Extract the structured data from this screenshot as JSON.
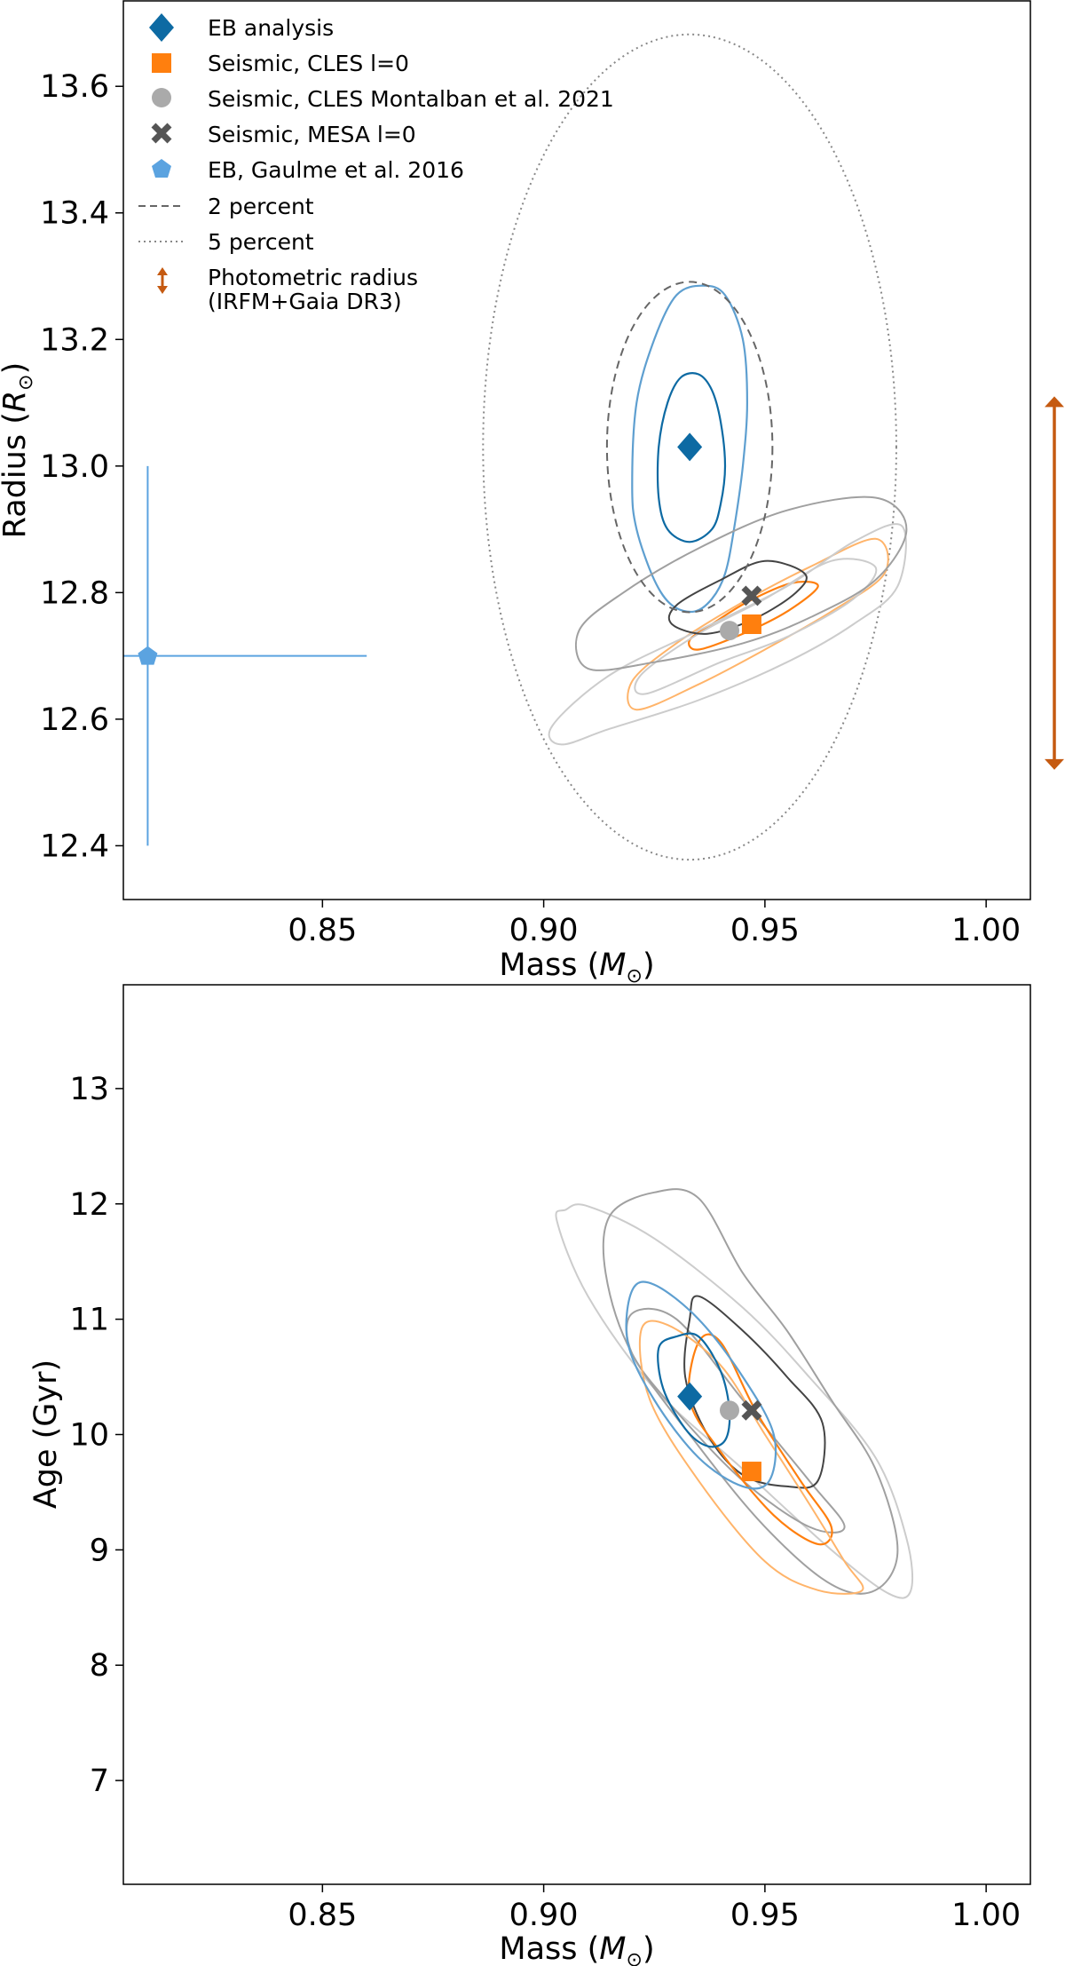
{
  "colors": {
    "eb": "#0d6aa3",
    "eb_outer": "#5e9fd0",
    "cles": "#ff7f0e",
    "cles_outer": "#ffb46a",
    "montalban": "#aaaaaa",
    "mesa": "#555555",
    "gaulme": "#5ba3e0",
    "photometric": "#c55a11",
    "ellipse": "#666666",
    "ellipse_dotted": "#888888",
    "gray_light": "#cccccc",
    "gray_mid": "#a0a0a0",
    "gray_dark": "#444444"
  },
  "legend": {
    "eb_analysis": "EB analysis",
    "seismic_cles": "Seismic, CLES l=0",
    "seismic_montalban": "Seismic, CLES Montalban et al. 2021",
    "seismic_mesa": "Seismic, MESA l=0",
    "eb_gaulme": "EB, Gaulme et al. 2016",
    "two_percent": "2 percent",
    "five_percent": "5 percent",
    "photometric_line1": "Photometric radius",
    "photometric_line2": "(IRFM+Gaia DR3)"
  },
  "chart_data": [
    {
      "type": "scatter",
      "xlabel_text": "Mass (",
      "xlabel_sym": "M",
      "xlabel_sub": "⊙",
      "xlabel_end": ")",
      "ylabel_text": "Radius (",
      "ylabel_sym": "R",
      "ylabel_sub": "⊙",
      "ylabel_end": ")",
      "xlim": [
        0.805,
        1.01
      ],
      "ylim": [
        12.315,
        13.735
      ],
      "xticks": [
        0.85,
        0.9,
        0.95,
        1.0
      ],
      "xtick_labels": [
        "0.85",
        "0.90",
        "0.95",
        "1.00"
      ],
      "yticks": [
        12.4,
        12.6,
        12.8,
        13.0,
        13.2,
        13.4,
        13.6
      ],
      "ytick_labels": [
        "12.4",
        "12.6",
        "12.8",
        "13.0",
        "13.2",
        "13.4",
        "13.6"
      ],
      "grid": false,
      "legend_position": "upper-left",
      "points": {
        "eb_analysis": [
          0.933,
          13.03
        ],
        "seismic_cles": [
          0.947,
          12.75
        ],
        "seismic_montalban": [
          0.942,
          12.74
        ],
        "seismic_mesa": [
          0.947,
          12.795
        ],
        "eb_gaulme": [
          0.8105,
          12.7
        ]
      },
      "gaulme_errorbar": {
        "x_range": [
          0.805,
          0.86
        ],
        "y_range": [
          12.4,
          13.0
        ]
      },
      "ellipse_2_percent": {
        "center": [
          0.933,
          13.03
        ],
        "rx": 0.0187,
        "ry": 0.261
      },
      "ellipse_5_percent": {
        "center": [
          0.933,
          13.03
        ],
        "rx": 0.0467,
        "ry": 0.652
      },
      "photometric_radius_range": [
        12.52,
        13.11
      ],
      "contours": [
        {
          "series": "eb_inner",
          "color": "eb",
          "width": 2.2,
          "points": [
            [
              0.926,
              12.95
            ],
            [
              0.928,
              12.9
            ],
            [
              0.933,
              12.88
            ],
            [
              0.938,
              12.9
            ],
            [
              0.94,
              12.94
            ],
            [
              0.941,
              13.0
            ],
            [
              0.94,
              13.07
            ],
            [
              0.938,
              13.12
            ],
            [
              0.935,
              13.145
            ],
            [
              0.931,
              13.14
            ],
            [
              0.928,
              13.1
            ],
            [
              0.926,
              13.03
            ]
          ]
        },
        {
          "series": "eb_outer",
          "color": "eb_outer",
          "width": 2.2,
          "points": [
            [
              0.92,
              12.97
            ],
            [
              0.921,
              12.9
            ],
            [
              0.925,
              12.82
            ],
            [
              0.929,
              12.78
            ],
            [
              0.934,
              12.77
            ],
            [
              0.938,
              12.79
            ],
            [
              0.941,
              12.83
            ],
            [
              0.943,
              12.9
            ],
            [
              0.945,
              13.0
            ],
            [
              0.946,
              13.1
            ],
            [
              0.945,
              13.2
            ],
            [
              0.941,
              13.27
            ],
            [
              0.936,
              13.285
            ],
            [
              0.93,
              13.27
            ],
            [
              0.925,
              13.2
            ],
            [
              0.921,
              13.1
            ]
          ]
        },
        {
          "series": "cles_inner",
          "color": "cles",
          "width": 2.2,
          "points": [
            [
              0.935,
              12.71
            ],
            [
              0.945,
              12.735
            ],
            [
              0.955,
              12.77
            ],
            [
              0.962,
              12.81
            ],
            [
              0.956,
              12.815
            ],
            [
              0.946,
              12.785
            ],
            [
              0.938,
              12.75
            ],
            [
              0.933,
              12.725
            ]
          ]
        },
        {
          "series": "cles_outer",
          "color": "cles_outer",
          "width": 2,
          "points": [
            [
              0.921,
              12.615
            ],
            [
              0.935,
              12.655
            ],
            [
              0.95,
              12.71
            ],
            [
              0.965,
              12.77
            ],
            [
              0.977,
              12.83
            ],
            [
              0.975,
              12.885
            ],
            [
              0.96,
              12.84
            ],
            [
              0.945,
              12.785
            ],
            [
              0.93,
              12.72
            ],
            [
              0.92,
              12.66
            ]
          ]
        },
        {
          "series": "gray_light_1",
          "color": "gray_light",
          "width": 2,
          "points": [
            [
              0.904,
              12.56
            ],
            [
              0.915,
              12.585
            ],
            [
              0.935,
              12.63
            ],
            [
              0.955,
              12.69
            ],
            [
              0.97,
              12.75
            ],
            [
              0.98,
              12.81
            ],
            [
              0.981,
              12.905
            ],
            [
              0.97,
              12.88
            ],
            [
              0.955,
              12.81
            ],
            [
              0.935,
              12.74
            ],
            [
              0.915,
              12.67
            ],
            [
              0.902,
              12.59
            ]
          ]
        },
        {
          "series": "gray_light_2",
          "color": "gray_light",
          "width": 2,
          "points": [
            [
              0.923,
              12.64
            ],
            [
              0.94,
              12.69
            ],
            [
              0.955,
              12.73
            ],
            [
              0.97,
              12.79
            ],
            [
              0.975,
              12.84
            ],
            [
              0.965,
              12.85
            ],
            [
              0.95,
              12.79
            ],
            [
              0.935,
              12.735
            ],
            [
              0.922,
              12.67
            ]
          ]
        },
        {
          "series": "gray_mid",
          "color": "gray_mid",
          "width": 2,
          "points": [
            [
              0.91,
              12.68
            ],
            [
              0.925,
              12.69
            ],
            [
              0.945,
              12.72
            ],
            [
              0.96,
              12.76
            ],
            [
              0.975,
              12.82
            ],
            [
              0.982,
              12.9
            ],
            [
              0.975,
              12.95
            ],
            [
              0.955,
              12.93
            ],
            [
              0.935,
              12.87
            ],
            [
              0.918,
              12.8
            ],
            [
              0.908,
              12.74
            ]
          ]
        },
        {
          "series": "gray_dark",
          "color": "gray_dark",
          "width": 2,
          "points": [
            [
              0.929,
              12.75
            ],
            [
              0.937,
              12.735
            ],
            [
              0.948,
              12.76
            ],
            [
              0.957,
              12.8
            ],
            [
              0.959,
              12.83
            ],
            [
              0.95,
              12.85
            ],
            [
              0.94,
              12.82
            ],
            [
              0.93,
              12.78
            ]
          ]
        }
      ]
    },
    {
      "type": "scatter",
      "xlabel_text": "Mass (",
      "xlabel_sym": "M",
      "xlabel_sub": "⊙",
      "xlabel_end": ")",
      "ylabel_text": "Age (Gyr)",
      "xlim": [
        0.805,
        1.01
      ],
      "ylim": [
        6.1,
        13.9
      ],
      "xticks": [
        0.85,
        0.9,
        0.95,
        1.0
      ],
      "xtick_labels": [
        "0.85",
        "0.90",
        "0.95",
        "1.00"
      ],
      "yticks": [
        7,
        8,
        9,
        10,
        11,
        12,
        13
      ],
      "ytick_labels": [
        "7",
        "8",
        "9",
        "10",
        "11",
        "12",
        "13"
      ],
      "grid": false,
      "points": {
        "eb_analysis": [
          0.933,
          10.33
        ],
        "seismic_cles": [
          0.947,
          9.68
        ],
        "seismic_montalban": [
          0.942,
          10.21
        ],
        "seismic_mesa": [
          0.947,
          10.21
        ]
      },
      "contours": [
        {
          "series": "gray_light",
          "color": "gray_light",
          "width": 2,
          "points": [
            [
              0.903,
              11.85
            ],
            [
              0.905,
              11.95
            ],
            [
              0.91,
              11.98
            ],
            [
              0.925,
              11.7
            ],
            [
              0.945,
              11.1
            ],
            [
              0.96,
              10.5
            ],
            [
              0.975,
              9.8
            ],
            [
              0.982,
              9.1
            ],
            [
              0.983,
              8.65
            ],
            [
              0.978,
              8.62
            ],
            [
              0.965,
              9.0
            ],
            [
              0.945,
              9.7
            ],
            [
              0.925,
              10.4
            ],
            [
              0.91,
              11.2
            ]
          ]
        },
        {
          "series": "gray_mid_1",
          "color": "gray_mid",
          "width": 2,
          "points": [
            [
              0.915,
              11.9
            ],
            [
              0.925,
              12.1
            ],
            [
              0.935,
              12.05
            ],
            [
              0.945,
              11.4
            ],
            [
              0.955,
              10.9
            ],
            [
              0.965,
              10.3
            ],
            [
              0.975,
              9.7
            ],
            [
              0.98,
              9.0
            ],
            [
              0.975,
              8.65
            ],
            [
              0.965,
              8.7
            ],
            [
              0.95,
              9.2
            ],
            [
              0.935,
              9.9
            ],
            [
              0.92,
              10.7
            ],
            [
              0.914,
              11.4
            ]
          ]
        },
        {
          "series": "gray_mid_2",
          "color": "gray_mid",
          "width": 2,
          "points": [
            [
              0.92,
              11.05
            ],
            [
              0.93,
              11.0
            ],
            [
              0.945,
              10.3
            ],
            [
              0.96,
              9.6
            ],
            [
              0.968,
              9.2
            ],
            [
              0.96,
              9.2
            ],
            [
              0.945,
              9.6
            ],
            [
              0.93,
              10.2
            ],
            [
              0.92,
              10.7
            ]
          ]
        },
        {
          "series": "gray_dark",
          "color": "gray_dark",
          "width": 2,
          "points": [
            [
              0.933,
              11.0
            ],
            [
              0.935,
              11.2
            ],
            [
              0.945,
              10.9
            ],
            [
              0.955,
              10.5
            ],
            [
              0.963,
              10.1
            ],
            [
              0.962,
              9.6
            ],
            [
              0.955,
              9.55
            ],
            [
              0.945,
              9.65
            ],
            [
              0.937,
              10.0
            ],
            [
              0.932,
              10.5
            ]
          ]
        },
        {
          "series": "cles_inner",
          "color": "cles",
          "width": 2.2,
          "points": [
            [
              0.935,
              10.8
            ],
            [
              0.94,
              10.8
            ],
            [
              0.948,
              10.2
            ],
            [
              0.958,
              9.6
            ],
            [
              0.965,
              9.2
            ],
            [
              0.962,
              9.05
            ],
            [
              0.952,
              9.3
            ],
            [
              0.94,
              9.85
            ],
            [
              0.933,
              10.3
            ]
          ]
        },
        {
          "series": "cles_outer",
          "color": "cles_outer",
          "width": 2,
          "points": [
            [
              0.922,
              10.9
            ],
            [
              0.928,
              10.95
            ],
            [
              0.94,
              10.6
            ],
            [
              0.95,
              10.0
            ],
            [
              0.96,
              9.4
            ],
            [
              0.968,
              8.9
            ],
            [
              0.972,
              8.65
            ],
            [
              0.962,
              8.65
            ],
            [
              0.95,
              8.9
            ],
            [
              0.935,
              9.6
            ],
            [
              0.924,
              10.3
            ]
          ]
        },
        {
          "series": "eb_outer",
          "color": "eb_outer",
          "width": 2.2,
          "points": [
            [
              0.92,
              11.25
            ],
            [
              0.925,
              11.3
            ],
            [
              0.935,
              11.0
            ],
            [
              0.945,
              10.5
            ],
            [
              0.952,
              10.0
            ],
            [
              0.951,
              9.6
            ],
            [
              0.945,
              9.55
            ],
            [
              0.935,
              9.8
            ],
            [
              0.925,
              10.3
            ],
            [
              0.919,
              10.8
            ]
          ]
        },
        {
          "series": "eb_inner",
          "color": "eb",
          "width": 2.2,
          "points": [
            [
              0.926,
              10.75
            ],
            [
              0.93,
              10.85
            ],
            [
              0.935,
              10.85
            ],
            [
              0.94,
              10.55
            ],
            [
              0.942,
              10.2
            ],
            [
              0.941,
              9.95
            ],
            [
              0.937,
              9.9
            ],
            [
              0.932,
              10.05
            ],
            [
              0.927,
              10.4
            ]
          ]
        }
      ]
    }
  ]
}
